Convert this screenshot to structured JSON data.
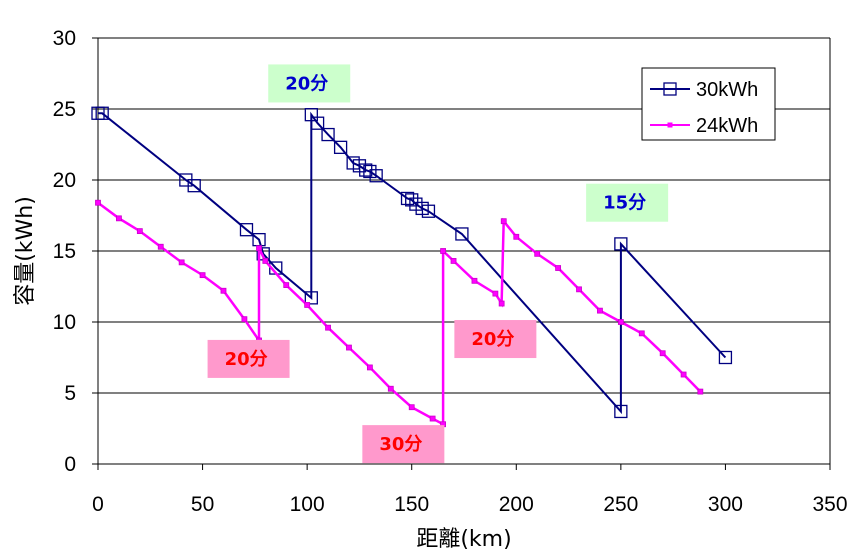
{
  "chart_data": {
    "type": "line",
    "title": "",
    "xlabel": "距離(km)",
    "ylabel": "容量(kWh)",
    "xlim": [
      0,
      350
    ],
    "ylim": [
      0,
      30
    ],
    "x_ticks": [
      0,
      50,
      100,
      150,
      200,
      250,
      300,
      350
    ],
    "y_ticks": [
      0,
      5,
      10,
      15,
      20,
      25,
      30
    ],
    "grid": "horizontal",
    "legend_position": "top-right",
    "series": [
      {
        "name": "30kWh",
        "color": "#000080",
        "marker": "square-open",
        "x": [
          0,
          2,
          42,
          46,
          71,
          77,
          79,
          85,
          102,
          102,
          105,
          110,
          116,
          122,
          125,
          128,
          130,
          133,
          148,
          150,
          152,
          155,
          158,
          174,
          250,
          250,
          300
        ],
        "y": [
          24.7,
          24.7,
          20.0,
          19.6,
          16.5,
          15.8,
          14.8,
          13.8,
          11.7,
          24.6,
          24.0,
          23.2,
          22.3,
          21.2,
          21.0,
          20.7,
          20.6,
          20.3,
          18.7,
          18.6,
          18.3,
          18.0,
          17.8,
          16.2,
          3.7,
          15.5,
          7.5
        ]
      },
      {
        "name": "24kWh",
        "color": "#ff00ff",
        "marker": "square-small",
        "x": [
          0,
          10,
          20,
          30,
          40,
          50,
          60,
          70,
          77,
          77,
          80,
          90,
          100,
          110,
          120,
          130,
          140,
          150,
          160,
          165,
          165,
          170,
          180,
          190,
          193,
          194,
          200,
          210,
          220,
          230,
          240,
          250,
          260,
          270,
          280,
          288
        ],
        "y": [
          18.4,
          17.3,
          16.4,
          15.3,
          14.2,
          13.3,
          12.2,
          10.2,
          8.7,
          15.2,
          14.3,
          12.6,
          11.2,
          9.6,
          8.2,
          6.8,
          5.3,
          4.0,
          3.2,
          2.8,
          15.0,
          14.3,
          12.9,
          12.0,
          11.3,
          17.1,
          16.0,
          14.8,
          13.8,
          12.3,
          10.8,
          10.0,
          9.2,
          7.8,
          6.3,
          5.1
        ]
      }
    ],
    "annotations": [
      {
        "text": "20分",
        "x": 101,
        "y": 26.8,
        "bg": "#ccffcc",
        "color": "#0000cc"
      },
      {
        "text": "15分",
        "x": 253,
        "y": 18.4,
        "bg": "#ccffcc",
        "color": "#0000cc"
      },
      {
        "text": "20分",
        "x": 72,
        "y": 7.4,
        "bg": "#ff99cc",
        "color": "#ff0000"
      },
      {
        "text": "30分",
        "x": 146,
        "y": 1.4,
        "bg": "#ff99cc",
        "color": "#ff0000"
      },
      {
        "text": "20分",
        "x": 190,
        "y": 8.8,
        "bg": "#ff99cc",
        "color": "#ff0000"
      }
    ]
  }
}
